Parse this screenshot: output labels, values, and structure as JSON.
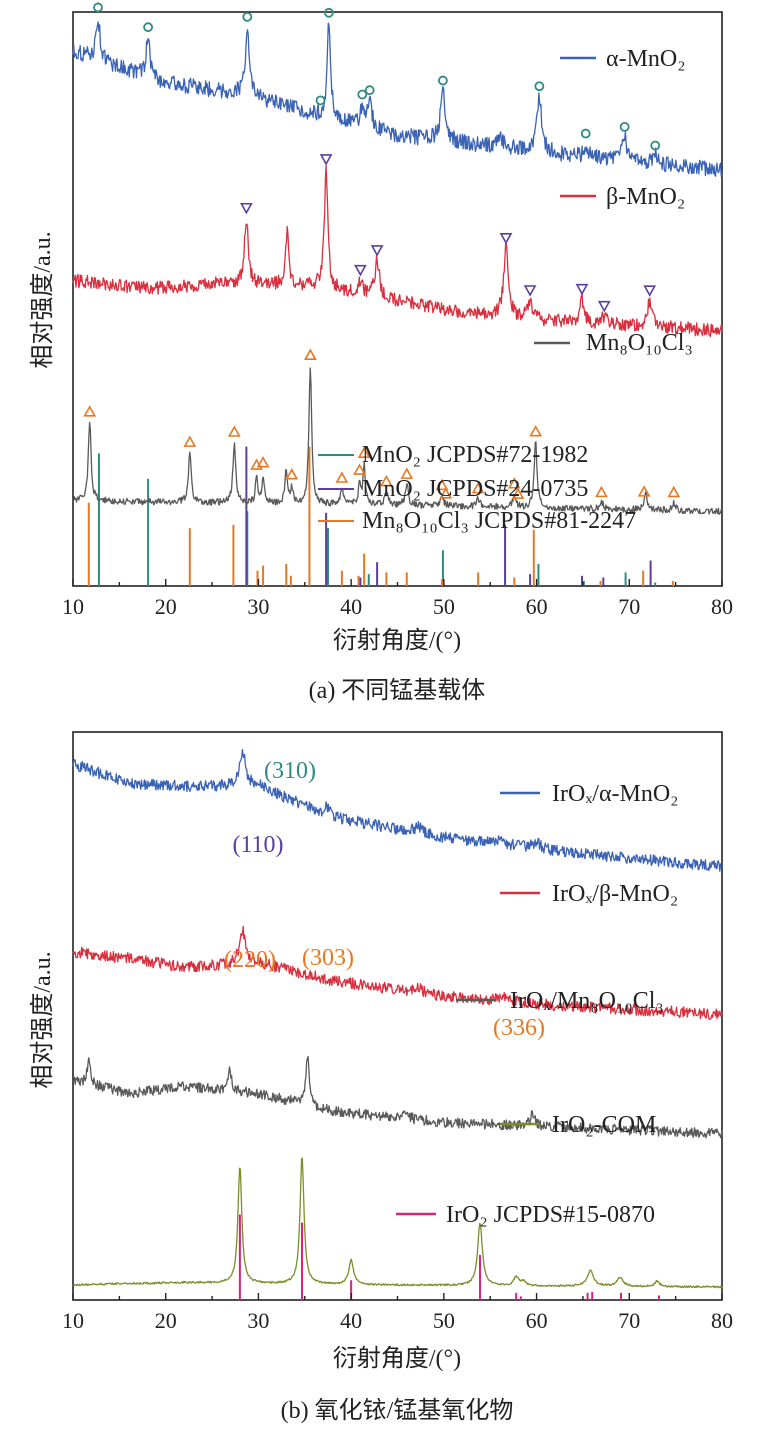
{
  "chart_data": [
    {
      "type": "line",
      "panel_id": "a",
      "caption": "(a) 不同锰基载体",
      "xlabel": "衍射角度/(°)",
      "ylabel": "相对强度/a.u.",
      "xlim": [
        10,
        80
      ],
      "xticks": [
        10,
        20,
        30,
        40,
        50,
        60,
        70,
        80
      ],
      "grid": false,
      "legend_placement": "right",
      "series": [
        {
          "name": "α-MnO₂",
          "color": "#3a62b5",
          "baseline": 0.05,
          "background": [
            [
              10,
              0.92
            ],
            [
              20,
              0.68
            ],
            [
              28,
              0.6
            ],
            [
              35,
              0.46
            ],
            [
              45,
              0.28
            ],
            [
              55,
              0.2
            ],
            [
              65,
              0.12
            ],
            [
              80,
              0.02
            ]
          ],
          "noise": 0.06,
          "peaks": [
            [
              12.7,
              0.32,
              0.25
            ],
            [
              18.1,
              0.3,
              0.25
            ],
            [
              28.8,
              0.52,
              0.25
            ],
            [
              37.6,
              0.72,
              0.22
            ],
            [
              41.2,
              0.14,
              0.25
            ],
            [
              42.0,
              0.2,
              0.3
            ],
            [
              49.9,
              0.38,
              0.3
            ],
            [
              56.0,
              0.08,
              0.4
            ],
            [
              60.3,
              0.42,
              0.3
            ],
            [
              65.3,
              0.1,
              0.25
            ],
            [
              69.5,
              0.18,
              0.3
            ],
            [
              72.8,
              0.06,
              0.25
            ]
          ],
          "markers": {
            "symbol": "circle",
            "color": "#2e8b80",
            "positions": [
              12.7,
              18.1,
              28.8,
              36.7,
              37.6,
              41.2,
              42.0,
              49.9,
              60.3,
              65.3,
              69.5,
              72.8
            ]
          }
        },
        {
          "name": "β-MnO₂",
          "color": "#d9303f",
          "baseline": 0.33,
          "background": [
            [
              10,
              0.4
            ],
            [
              18,
              0.34
            ],
            [
              26,
              0.38
            ],
            [
              36,
              0.36
            ],
            [
              50,
              0.18
            ],
            [
              60,
              0.1
            ],
            [
              80,
              0.02
            ]
          ],
          "noise": 0.05,
          "peaks": [
            [
              28.7,
              0.5,
              0.25
            ],
            [
              33.1,
              0.42,
              0.2
            ],
            [
              37.3,
              0.9,
              0.22
            ],
            [
              41.0,
              0.1,
              0.25
            ],
            [
              42.8,
              0.28,
              0.3
            ],
            [
              56.7,
              0.52,
              0.3
            ],
            [
              59.3,
              0.14,
              0.3
            ],
            [
              64.9,
              0.18,
              0.25
            ],
            [
              67.3,
              0.06,
              0.3
            ],
            [
              72.2,
              0.2,
              0.3
            ]
          ],
          "markers": {
            "symbol": "triangle-down",
            "color": "#5a3fa0",
            "positions": [
              28.7,
              37.3,
              41.0,
              42.8,
              56.7,
              59.3,
              64.9,
              67.3,
              72.2
            ]
          }
        },
        {
          "name": "Mn₈O₁₀Cl₃",
          "color": "#5a5a5a",
          "baseline": 0.64,
          "background": [
            [
              10,
              0.08
            ],
            [
              30,
              0.06
            ],
            [
              50,
              0.04
            ],
            [
              80,
              0.0
            ]
          ],
          "noise": 0.025,
          "peaks": [
            [
              11.8,
              0.6,
              0.18
            ],
            [
              22.6,
              0.38,
              0.18
            ],
            [
              27.4,
              0.46,
              0.18
            ],
            [
              29.8,
              0.2,
              0.15
            ],
            [
              30.5,
              0.22,
              0.15
            ],
            [
              33.0,
              0.26,
              0.15
            ],
            [
              33.6,
              0.12,
              0.15
            ],
            [
              35.6,
              1.05,
              0.18
            ],
            [
              39.0,
              0.12,
              0.18
            ],
            [
              40.9,
              0.16,
              0.15
            ],
            [
              41.4,
              0.3,
              0.15
            ],
            [
              43.8,
              0.1,
              0.2
            ],
            [
              46.0,
              0.16,
              0.2
            ],
            [
              49.8,
              0.08,
              0.2
            ],
            [
              53.7,
              0.06,
              0.2
            ],
            [
              57.6,
              0.1,
              0.2
            ],
            [
              59.9,
              0.5,
              0.18
            ],
            [
              67.0,
              0.05,
              0.25
            ],
            [
              71.8,
              0.12,
              0.2
            ],
            [
              74.8,
              0.06,
              0.2
            ]
          ],
          "markers": {
            "symbol": "triangle-up",
            "color": "#e87722",
            "positions": [
              11.8,
              22.6,
              27.4,
              29.8,
              30.5,
              33.6,
              35.6,
              39.0,
              40.9,
              41.4,
              43.8,
              46.0,
              49.8,
              50.2,
              53.7,
              57.6,
              58.0,
              59.9,
              67.0,
              71.6,
              74.8
            ]
          }
        }
      ],
      "reference_patterns": [
        {
          "name": "MnO₂ JCPDS#72-1982",
          "color": "#2e8b80",
          "peaks": [
            [
              12.8,
              0.78
            ],
            [
              18.1,
              0.63
            ],
            [
              28.8,
              0.44
            ],
            [
              37.5,
              0.34
            ],
            [
              41.9,
              0.07
            ],
            [
              49.9,
              0.21
            ],
            [
              60.2,
              0.13
            ],
            [
              65.1,
              0.03
            ],
            [
              69.6,
              0.08
            ],
            [
              72.8,
              0.02
            ]
          ]
        },
        {
          "name": "MnO₂ JCPDS#24-0735",
          "color": "#5a3fa0",
          "peaks": [
            [
              28.7,
              0.82
            ],
            [
              37.3,
              0.43
            ],
            [
              41.0,
              0.05
            ],
            [
              42.8,
              0.14
            ],
            [
              56.6,
              0.36
            ],
            [
              59.3,
              0.07
            ],
            [
              64.9,
              0.06
            ],
            [
              67.2,
              0.05
            ],
            [
              72.3,
              0.15
            ]
          ]
        },
        {
          "name": "Mn₈O₁₀Cl₃ JCPDS#81-2247",
          "color": "#e87722",
          "peaks": [
            [
              11.7,
              0.49
            ],
            [
              22.6,
              0.34
            ],
            [
              27.3,
              0.36
            ],
            [
              29.9,
              0.09
            ],
            [
              30.5,
              0.12
            ],
            [
              33.0,
              0.13
            ],
            [
              33.5,
              0.06
            ],
            [
              35.5,
              0.82
            ],
            [
              39.0,
              0.09
            ],
            [
              40.8,
              0.06
            ],
            [
              41.4,
              0.19
            ],
            [
              43.8,
              0.08
            ],
            [
              46.0,
              0.08
            ],
            [
              49.8,
              0.04
            ],
            [
              53.7,
              0.08
            ],
            [
              57.6,
              0.05
            ],
            [
              59.7,
              0.33
            ],
            [
              66.9,
              0.03
            ],
            [
              71.5,
              0.09
            ],
            [
              74.7,
              0.03
            ]
          ]
        }
      ]
    },
    {
      "type": "line",
      "panel_id": "b",
      "caption": "(b) 氧化铱/锰基氧化物",
      "xlabel": "衍射角度/(°)",
      "ylabel": "相对强度/a.u.",
      "xlim": [
        10,
        80
      ],
      "xticks": [
        10,
        20,
        30,
        40,
        50,
        60,
        70,
        80
      ],
      "grid": false,
      "legend_placement": "right",
      "series": [
        {
          "name": "IrOₓ/α-MnO₂",
          "color": "#3a62b5",
          "baseline": 0.04,
          "background": [
            [
              10,
              0.92
            ],
            [
              16,
              0.74
            ],
            [
              22,
              0.72
            ],
            [
              30,
              0.72
            ],
            [
              38,
              0.44
            ],
            [
              50,
              0.26
            ],
            [
              62,
              0.14
            ],
            [
              80,
              0.0
            ]
          ],
          "noise": 0.05,
          "peaks": [
            [
              28.3,
              0.3,
              0.4
            ],
            [
              37.5,
              0.08,
              0.4
            ],
            [
              47.3,
              0.06,
              0.5
            ],
            [
              56.0,
              0.05,
              0.6
            ],
            [
              60.0,
              0.06,
              0.5
            ]
          ]
        },
        {
          "name": "IrOₓ/β-MnO₂",
          "color": "#d9303f",
          "baseline": 0.3,
          "background": [
            [
              10,
              0.56
            ],
            [
              16,
              0.5
            ],
            [
              22,
              0.42
            ],
            [
              30,
              0.46
            ],
            [
              38,
              0.3
            ],
            [
              50,
              0.16
            ],
            [
              62,
              0.08
            ],
            [
              80,
              0.0
            ]
          ],
          "noise": 0.05,
          "peaks": [
            [
              28.3,
              0.3,
              0.4
            ],
            [
              47.3,
              0.05,
              0.5
            ],
            [
              56.5,
              0.05,
              0.6
            ]
          ]
        },
        {
          "name": "IrOₓ/Mn₈O₁₀Cl₃",
          "color": "#5a5a5a",
          "baseline": 0.51,
          "background": [
            [
              10,
              0.48
            ],
            [
              16,
              0.36
            ],
            [
              22,
              0.42
            ],
            [
              30,
              0.36
            ],
            [
              38,
              0.2
            ],
            [
              50,
              0.1
            ],
            [
              62,
              0.06
            ],
            [
              80,
              0.0
            ]
          ],
          "noise": 0.045,
          "peaks": [
            [
              11.7,
              0.22,
              0.2
            ],
            [
              26.9,
              0.22,
              0.2
            ],
            [
              35.3,
              0.46,
              0.2
            ],
            [
              45.8,
              0.05,
              0.4
            ],
            [
              59.6,
              0.12,
              0.3
            ]
          ]
        },
        {
          "name": "IrO₂-COM",
          "color": "#7f8c2a",
          "baseline": 0.78,
          "background": [
            [
              10,
              0.02
            ],
            [
              22,
              0.04
            ],
            [
              40,
              0.02
            ],
            [
              80,
              0.0
            ]
          ],
          "noise": 0.008,
          "peaks": [
            [
              28.0,
              1.05,
              0.25
            ],
            [
              34.7,
              1.15,
              0.25
            ],
            [
              40.0,
              0.22,
              0.3
            ],
            [
              53.9,
              0.56,
              0.3
            ],
            [
              57.8,
              0.08,
              0.3
            ],
            [
              58.6,
              0.04,
              0.3
            ],
            [
              65.8,
              0.14,
              0.4
            ],
            [
              69.0,
              0.08,
              0.4
            ],
            [
              73.0,
              0.05,
              0.3
            ]
          ]
        }
      ],
      "reference_patterns": [
        {
          "name": "IrO₂ JCPDS#15-0870",
          "color": "#d6247a",
          "peaks": [
            [
              28.0,
              0.95
            ],
            [
              34.7,
              0.86
            ],
            [
              40.0,
              0.22
            ],
            [
              53.9,
              0.5
            ],
            [
              57.8,
              0.08
            ],
            [
              58.3,
              0.04
            ],
            [
              65.5,
              0.08
            ],
            [
              66.0,
              0.09
            ],
            [
              69.1,
              0.08
            ],
            [
              73.2,
              0.05
            ]
          ]
        }
      ],
      "peak_labels": [
        {
          "text": "(310)",
          "color": "#2e8b80"
        },
        {
          "text": "(110)",
          "color": "#5a3fa0"
        },
        {
          "text": "(220)",
          "color": "#e87722"
        },
        {
          "text": "(303)",
          "color": "#e87722"
        },
        {
          "text": "(336)",
          "color": "#e87722"
        }
      ]
    }
  ]
}
